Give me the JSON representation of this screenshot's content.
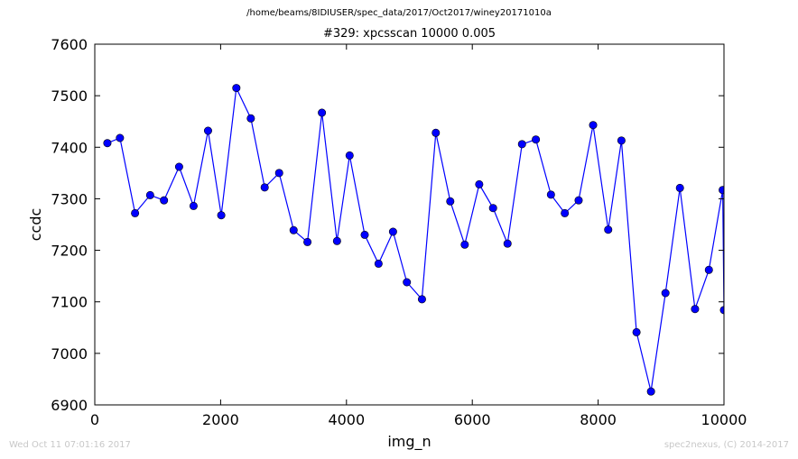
{
  "header": {
    "path": "/home/beams/8IDIUSER/spec_data/2017/Oct2017/winey20171010a",
    "scan_title": "#329: xpcsscan 10000 0.005"
  },
  "footer": {
    "timestamp": "Wed Oct 11 07:01:16 2017",
    "credit": "spec2nexus, (C) 2014-2017"
  },
  "chart_data": {
    "type": "line",
    "title": "#329: xpcsscan 10000 0.005",
    "xlabel": "img_n",
    "ylabel": "ccdc",
    "xlim": [
      0,
      10000
    ],
    "ylim": [
      6900,
      7600
    ],
    "xticks": [
      0,
      2000,
      4000,
      6000,
      8000,
      10000
    ],
    "yticks": [
      6900,
      7000,
      7100,
      7200,
      7300,
      7400,
      7500,
      7600
    ],
    "grid": false,
    "line_color": "#0000ff",
    "marker": "circle",
    "x": [
      200,
      400,
      640,
      880,
      1100,
      1340,
      1570,
      1800,
      2010,
      2250,
      2480,
      2700,
      2930,
      3160,
      3380,
      3610,
      3850,
      4050,
      4290,
      4510,
      4740,
      4960,
      5200,
      5420,
      5650,
      5880,
      6110,
      6330,
      6560,
      6790,
      7010,
      7250,
      7470,
      7690,
      7920,
      8160,
      8370,
      8610,
      8840,
      9070,
      9300,
      9540,
      9760,
      9980,
      10000
    ],
    "y": [
      7408,
      7418,
      7272,
      7307,
      7297,
      7362,
      7286,
      7432,
      7268,
      7515,
      7456,
      7322,
      7350,
      7239,
      7216,
      7467,
      7218,
      7384,
      7230,
      7174,
      7236,
      7138,
      7105,
      7428,
      7295,
      7211,
      7328,
      7282,
      7213,
      7406,
      7415,
      7308,
      7272,
      7297,
      7443,
      7240,
      7413,
      7041,
      6926,
      7117,
      7321,
      7086,
      7162,
      7317,
      7084
    ]
  }
}
